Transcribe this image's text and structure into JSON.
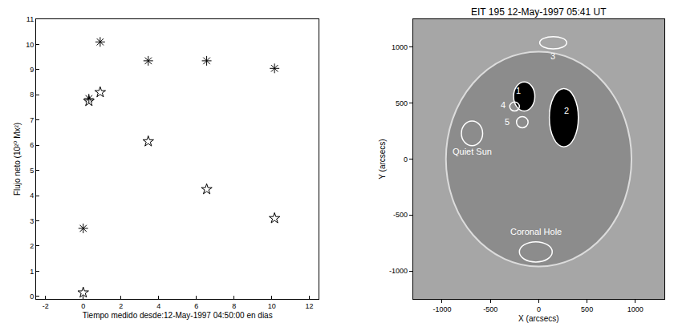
{
  "chart_data": [
    {
      "type": "scatter",
      "x_label": "Tiempo medido desde:12-May-1997 04:50:00 en dias",
      "y_label": "Flujo neto (10²⁰ Mx²)",
      "xlim": [
        -2.5,
        12.5
      ],
      "xticks": [
        -2,
        0,
        2,
        4,
        6,
        8,
        10,
        12
      ],
      "ylim": [
        -0.1,
        11
      ],
      "yticks": [
        0,
        1,
        2,
        3,
        4,
        5,
        6,
        7,
        8,
        9,
        10,
        11
      ],
      "grid": false,
      "series": [
        {
          "marker": "asterisk",
          "color": "#000000",
          "x": [
            0,
            0.3,
            0.9,
            3.45,
            6.55,
            10.15
          ],
          "values": [
            2.7,
            7.85,
            10.1,
            9.35,
            9.35,
            9.05
          ]
        },
        {
          "marker": "star-open",
          "color": "#000000",
          "x": [
            0,
            0.3,
            0.9,
            3.45,
            6.55,
            10.15
          ],
          "values": [
            0.15,
            7.75,
            8.1,
            6.15,
            4.25,
            3.1
          ]
        }
      ]
    },
    {
      "type": "image",
      "title": "EIT 195 12-May-1997 05:41 UT",
      "x_label": "X (arcsecs)",
      "y_label": "Y (arcsecs)",
      "xlim": [
        -1300,
        1300
      ],
      "xticks": [
        -1000,
        -500,
        0,
        500,
        1000
      ],
      "ylim": [
        -1250,
        1250
      ],
      "yticks": [
        -1000,
        -500,
        0,
        500,
        1000
      ],
      "solar_radius": 960,
      "regions": [
        {
          "label": "3",
          "x": 150,
          "y": 1040,
          "rx": 140,
          "ry": 55,
          "label_x": 150,
          "label_y": 920,
          "color": "none"
        },
        {
          "label": "1",
          "x": -150,
          "y": 560,
          "rx": 110,
          "ry": 130,
          "label_x": -210,
          "label_y": 610,
          "color": "#000000"
        },
        {
          "label": "2",
          "x": 260,
          "y": 370,
          "rx": 150,
          "ry": 260,
          "label_x": 290,
          "label_y": 430,
          "color": "#000000"
        },
        {
          "label": "4",
          "x": -250,
          "y": 470,
          "rx": 50,
          "ry": 40,
          "label_x": -370,
          "label_y": 480,
          "color": "none"
        },
        {
          "label": "5",
          "x": -170,
          "y": 330,
          "rx": 60,
          "ry": 50,
          "label_x": -330,
          "label_y": 330,
          "color": "none"
        },
        {
          "label": "Quiet Sun",
          "x": -690,
          "y": 230,
          "rx": 110,
          "ry": 110,
          "label_x": -690,
          "label_y": 70,
          "color": "none"
        },
        {
          "label": "Coronal Hole",
          "x": -30,
          "y": -830,
          "rx": 170,
          "ry": 90,
          "label_x": -30,
          "label_y": -650,
          "color": "none"
        }
      ]
    }
  ]
}
